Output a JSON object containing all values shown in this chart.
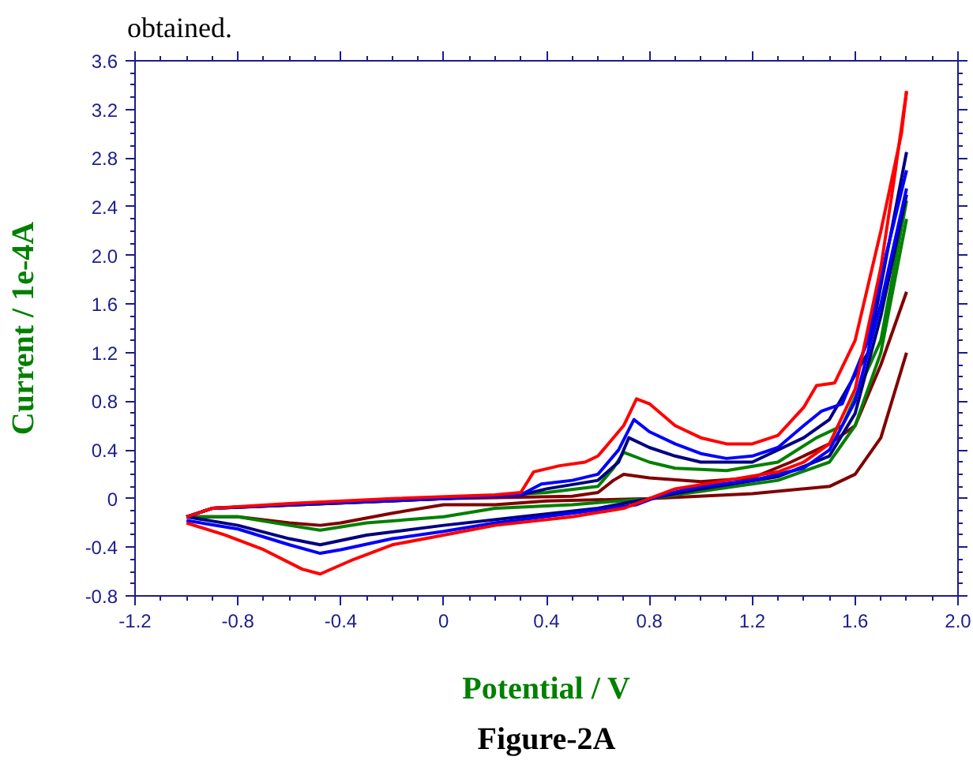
{
  "chart_data": {
    "type": "line",
    "xlabel": "Potential / V",
    "ylabel": "Current / 1e-4A",
    "annotations": [
      "obtained.",
      "Figure-2A"
    ],
    "xlim": [
      -1.2,
      2.0
    ],
    "ylim": [
      -0.8,
      3.6
    ],
    "xticks": [
      -1.2,
      -0.8,
      -0.4,
      0,
      0.4,
      0.8,
      1.2,
      1.6,
      {
        "value": 2.0,
        "label": "2.0"
      }
    ],
    "yticks": [
      -0.8,
      -0.4,
      0,
      0.4,
      0.8,
      1.2,
      1.6,
      {
        "value": 2.0,
        "label": "2.0"
      },
      2.4,
      2.8,
      3.2,
      3.6
    ],
    "grid": false,
    "marker": "none",
    "line_style": "solid",
    "series": [
      {
        "color": "#800000",
        "x": [
          -1.0,
          -0.9,
          0,
          0.5,
          0.6,
          0.66,
          0.7,
          0.8,
          1.0,
          1.2,
          1.35,
          1.5,
          1.6,
          1.7,
          1.8
        ],
        "values": [
          -0.15,
          -0.08,
          0.0,
          0.02,
          0.05,
          0.15,
          0.2,
          0.17,
          0.14,
          0.17,
          0.3,
          0.45,
          0.6,
          1.1,
          1.7
        ]
      },
      {
        "color": "#800000",
        "x": [
          1.8,
          1.7,
          1.6,
          1.5,
          1.2,
          0.8,
          0.4,
          0.2,
          0.0,
          -0.2,
          -0.4,
          -0.48,
          -0.6,
          -0.8,
          -1.0
        ],
        "values": [
          1.2,
          0.5,
          0.2,
          0.1,
          0.04,
          0.0,
          -0.02,
          -0.05,
          -0.05,
          -0.12,
          -0.2,
          -0.22,
          -0.2,
          -0.15,
          -0.15
        ]
      },
      {
        "color": "#008000",
        "x": [
          -1.0,
          -0.9,
          0,
          0.4,
          0.6,
          0.66,
          0.7,
          0.8,
          0.9,
          1.1,
          1.3,
          1.45,
          1.55,
          1.7,
          1.8
        ],
        "values": [
          -0.15,
          -0.08,
          0.0,
          0.05,
          0.1,
          0.25,
          0.38,
          0.3,
          0.25,
          0.23,
          0.3,
          0.5,
          0.6,
          1.3,
          2.45
        ]
      },
      {
        "color": "#008000",
        "x": [
          1.8,
          1.7,
          1.6,
          1.5,
          1.3,
          1.0,
          0.8,
          0.5,
          0.2,
          0.0,
          -0.3,
          -0.48,
          -0.6,
          -0.8,
          -1.0
        ],
        "values": [
          2.3,
          1.2,
          0.6,
          0.3,
          0.15,
          0.06,
          0.0,
          -0.05,
          -0.08,
          -0.15,
          -0.2,
          -0.26,
          -0.22,
          -0.15,
          -0.15
        ]
      },
      {
        "color": "#000080",
        "x": [
          -1.0,
          -0.9,
          0,
          0.3,
          0.4,
          0.6,
          0.68,
          0.72,
          0.8,
          0.9,
          1.0,
          1.2,
          1.4,
          1.5,
          1.65,
          1.8
        ],
        "values": [
          -0.15,
          -0.08,
          0.0,
          0.03,
          0.08,
          0.15,
          0.3,
          0.5,
          0.42,
          0.35,
          0.3,
          0.3,
          0.5,
          0.65,
          1.2,
          2.85
        ]
      },
      {
        "color": "#000080",
        "x": [
          1.8,
          1.7,
          1.6,
          1.5,
          1.3,
          1.0,
          0.8,
          0.6,
          0.3,
          0.0,
          -0.3,
          -0.48,
          -0.6,
          -0.8,
          -1.0
        ],
        "values": [
          2.5,
          1.5,
          0.7,
          0.35,
          0.18,
          0.08,
          0.0,
          -0.08,
          -0.15,
          -0.22,
          -0.3,
          -0.38,
          -0.33,
          -0.22,
          -0.15
        ]
      },
      {
        "color": "#0000ff",
        "x": [
          -1.0,
          -0.9,
          -0.5,
          0.0,
          0.3,
          0.38,
          0.5,
          0.6,
          0.68,
          0.74,
          0.8,
          0.9,
          1.0,
          1.1,
          1.2,
          1.3,
          1.4,
          1.47,
          1.55,
          1.65,
          1.72,
          1.8
        ],
        "values": [
          -0.15,
          -0.08,
          -0.04,
          0.0,
          0.03,
          0.12,
          0.15,
          0.2,
          0.4,
          0.65,
          0.55,
          0.45,
          0.37,
          0.33,
          0.35,
          0.42,
          0.6,
          0.72,
          0.78,
          1.3,
          2.0,
          2.7
        ]
      },
      {
        "color": "#0000ff",
        "x": [
          1.8,
          1.7,
          1.6,
          1.5,
          1.4,
          1.2,
          1.0,
          0.85,
          0.75,
          0.5,
          0.2,
          0.0,
          -0.2,
          -0.4,
          -0.48,
          -0.6,
          -0.8,
          -1.0
        ],
        "values": [
          2.55,
          1.6,
          0.8,
          0.4,
          0.25,
          0.15,
          0.1,
          0.03,
          -0.05,
          -0.12,
          -0.2,
          -0.27,
          -0.33,
          -0.42,
          -0.45,
          -0.38,
          -0.25,
          -0.18
        ]
      },
      {
        "color": "#ff0000",
        "x": [
          -1.0,
          -0.9,
          -0.6,
          -0.2,
          0.2,
          0.3,
          0.35,
          0.45,
          0.55,
          0.6,
          0.7,
          0.75,
          0.8,
          0.9,
          1.0,
          1.1,
          1.2,
          1.3,
          1.4,
          1.45,
          1.52,
          1.6,
          1.7,
          1.78,
          1.8
        ],
        "values": [
          -0.15,
          -0.08,
          -0.04,
          0.0,
          0.03,
          0.05,
          0.22,
          0.27,
          0.3,
          0.35,
          0.6,
          0.82,
          0.78,
          0.6,
          0.5,
          0.45,
          0.45,
          0.52,
          0.75,
          0.93,
          0.95,
          1.3,
          2.2,
          3.0,
          3.35
        ]
      },
      {
        "color": "#ff0000",
        "x": [
          1.8,
          1.75,
          1.7,
          1.6,
          1.5,
          1.4,
          1.3,
          1.1,
          0.9,
          0.8,
          0.7,
          0.5,
          0.2,
          0.0,
          -0.2,
          -0.35,
          -0.48,
          -0.55,
          -0.7,
          -0.85,
          -1.0
        ],
        "values": [
          3.35,
          2.6,
          1.9,
          0.9,
          0.45,
          0.3,
          0.22,
          0.15,
          0.08,
          0.0,
          -0.08,
          -0.15,
          -0.22,
          -0.3,
          -0.38,
          -0.5,
          -0.62,
          -0.58,
          -0.42,
          -0.3,
          -0.2
        ]
      }
    ]
  }
}
